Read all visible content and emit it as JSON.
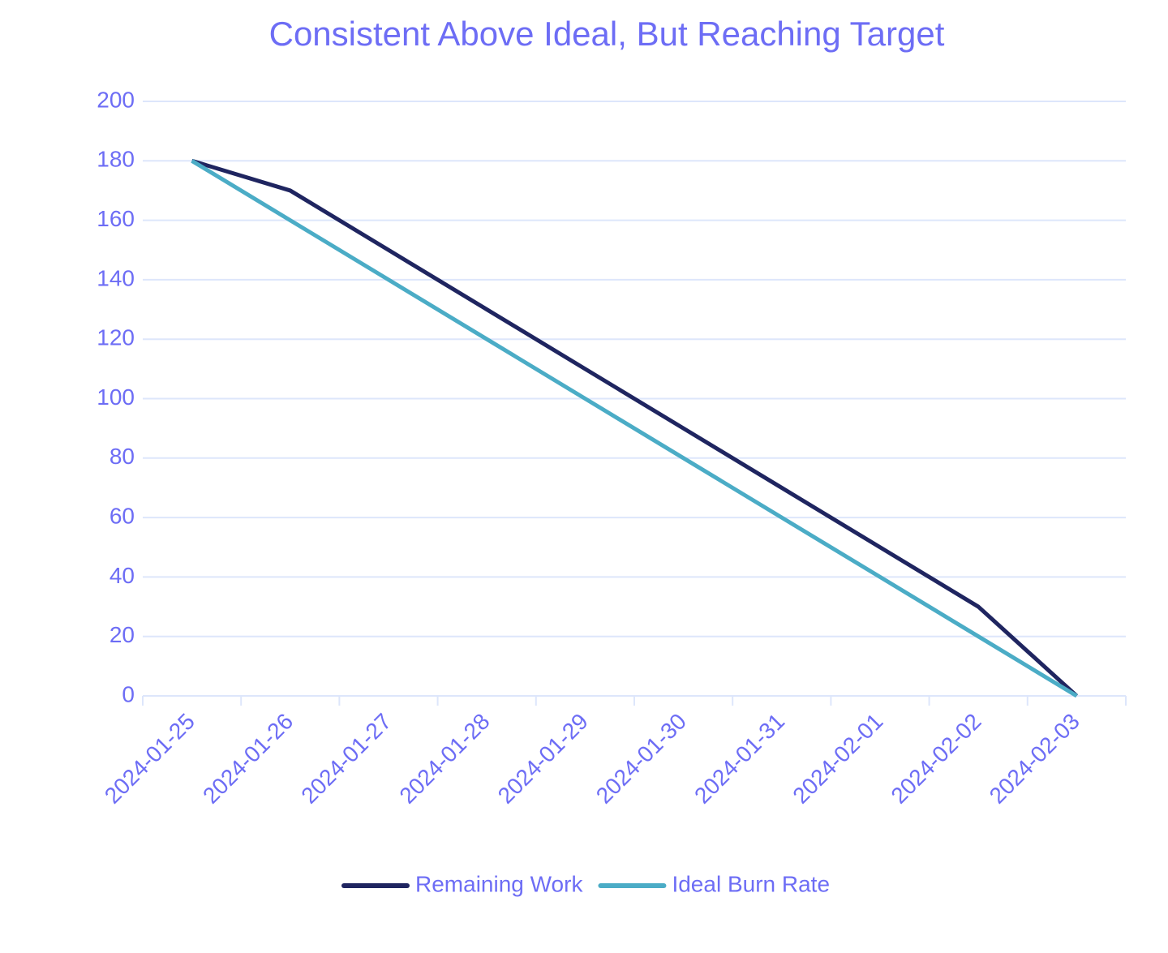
{
  "chart_data": {
    "type": "line",
    "title": "Consistent Above Ideal, But Reaching Target",
    "categories": [
      "2024-01-25",
      "2024-01-26",
      "2024-01-27",
      "2024-01-28",
      "2024-01-29",
      "2024-01-30",
      "2024-01-31",
      "2024-02-01",
      "2024-02-02",
      "2024-02-03"
    ],
    "series": [
      {
        "name": "Remaining Work",
        "color": "#1f2560",
        "values": [
          180,
          170,
          150,
          130,
          110,
          90,
          70,
          50,
          30,
          0
        ]
      },
      {
        "name": "Ideal Burn Rate",
        "color": "#4bacc6",
        "values": [
          180,
          160,
          140,
          120,
          100,
          80,
          60,
          40,
          20,
          0
        ]
      }
    ],
    "ylim": [
      0,
      200
    ],
    "yticks": [
      0,
      20,
      40,
      60,
      80,
      100,
      120,
      140,
      160,
      180,
      200
    ],
    "grid": true,
    "legend": "bottom"
  }
}
